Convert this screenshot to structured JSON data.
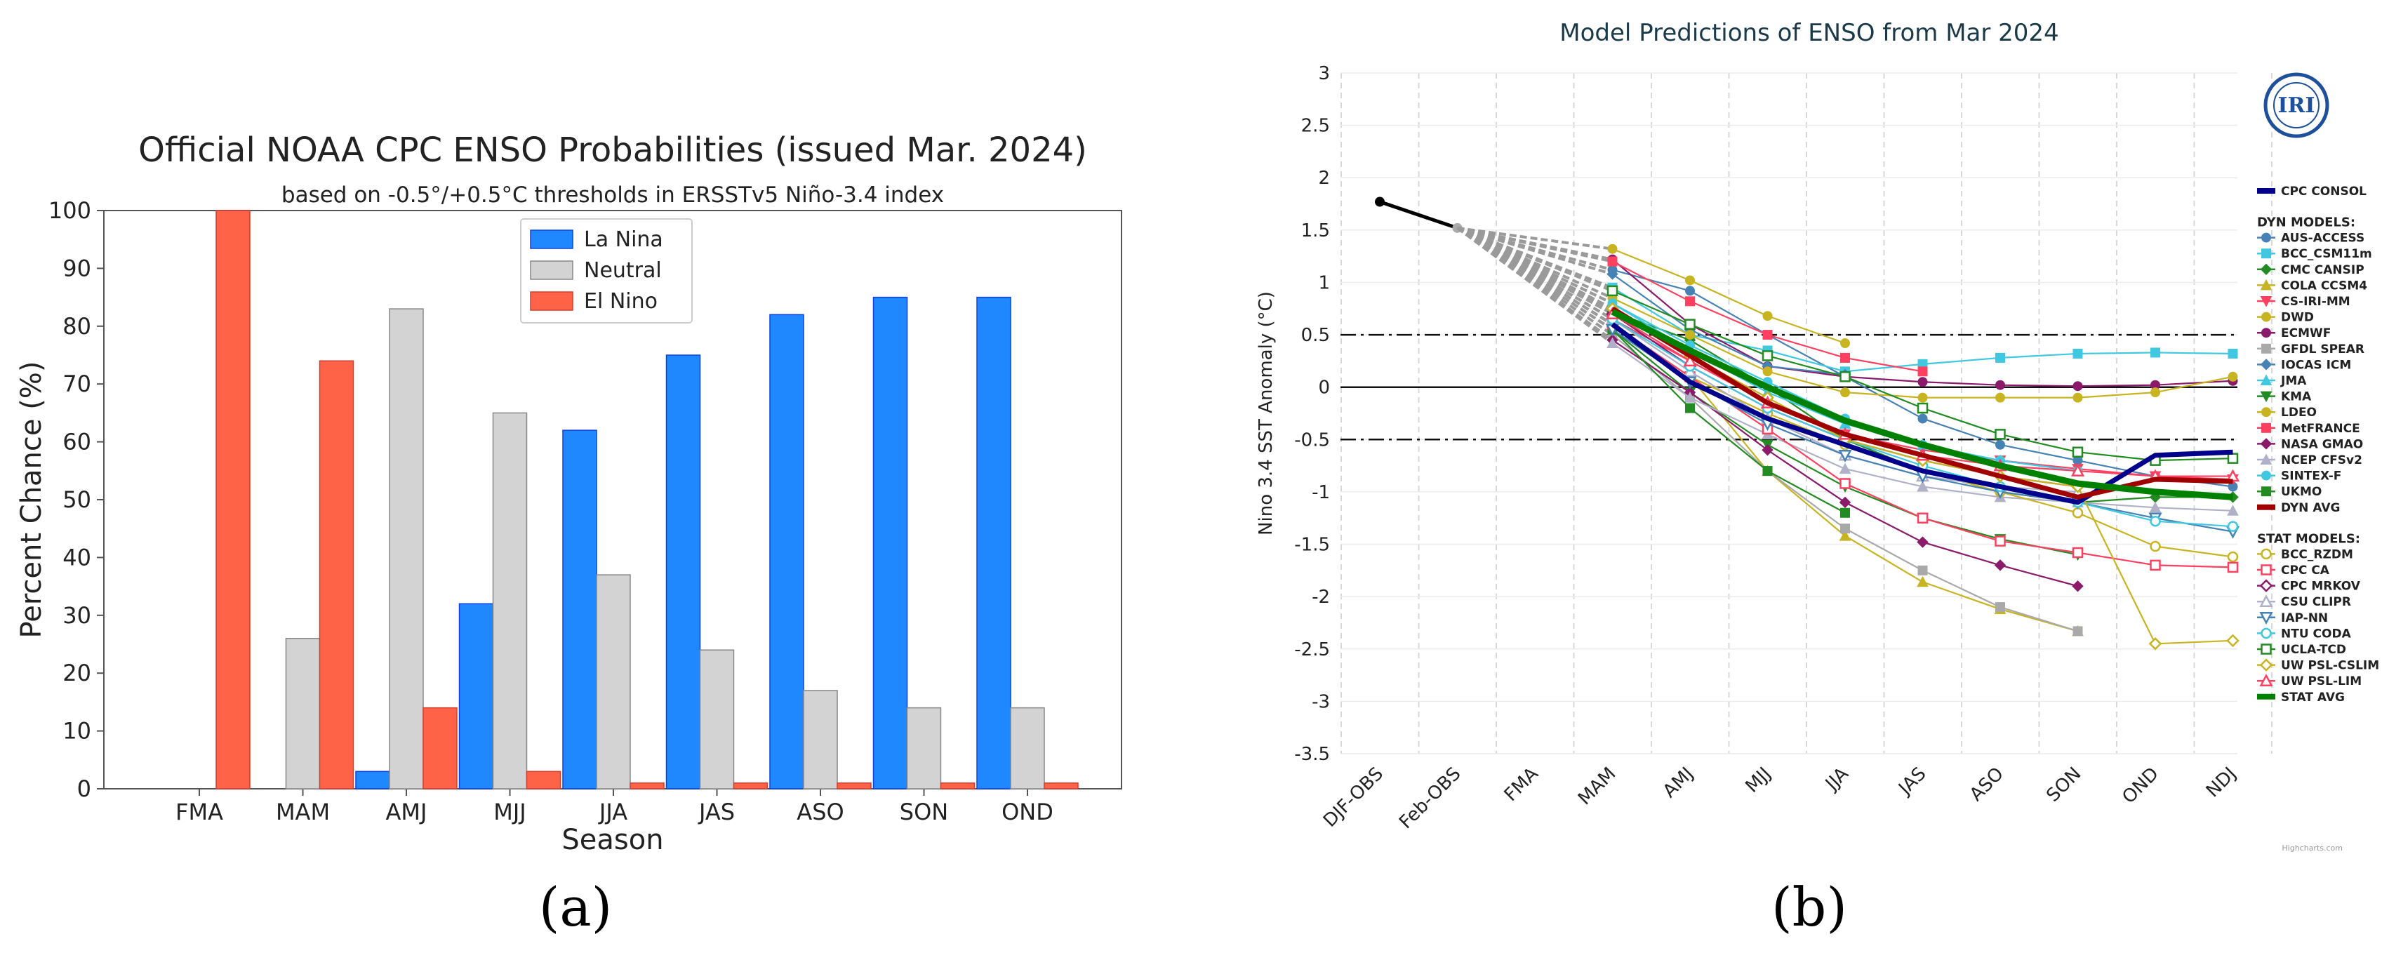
{
  "captions": {
    "a": "(a)",
    "b": "(b)"
  },
  "chart_data": [
    {
      "type": "bar",
      "title": "Official NOAA CPC ENSO Probabilities (issued Mar. 2024)",
      "subtitle": "based on -0.5°/+0.5°C thresholds in ERSSTv5 Niño-3.4 index",
      "xlabel": "Season",
      "ylabel": "Percent Chance (%)",
      "ylim": [
        0,
        100
      ],
      "yticks": [
        0,
        10,
        20,
        30,
        40,
        50,
        60,
        70,
        80,
        90,
        100
      ],
      "grid": false,
      "legend_position": "top-center",
      "categories": [
        "FMA",
        "MAM",
        "AMJ",
        "MJJ",
        "JJA",
        "JAS",
        "ASO",
        "SON",
        "OND"
      ],
      "series": [
        {
          "name": "La Nina",
          "color": "#1f88ff",
          "values": [
            0,
            0,
            3,
            32,
            62,
            75,
            82,
            85,
            85
          ]
        },
        {
          "name": "Neutral",
          "color": "#d3d3d3",
          "values": [
            0,
            26,
            83,
            65,
            37,
            24,
            17,
            14,
            14
          ]
        },
        {
          "name": "El Nino",
          "color": "#ff6347",
          "values": [
            100,
            74,
            14,
            3,
            1,
            1,
            1,
            1,
            1
          ]
        }
      ]
    },
    {
      "type": "line",
      "title": "Model Predictions of ENSO from Mar 2024",
      "ylabel": "Nino 3.4 SST Anomaly (°C)",
      "xlabel": "",
      "ylim": [
        -3.5,
        3
      ],
      "yticks": [
        "3",
        "2.5",
        "2",
        "1.5",
        "1",
        "0.5",
        "0",
        "-0.5",
        "-1",
        "-1.5",
        "-2",
        "-2.5",
        "-3",
        "-3.5"
      ],
      "categories": [
        "DJF-OBS",
        "Feb-OBS",
        "FMA",
        "MAM",
        "AMJ",
        "MJJ",
        "JJA",
        "JAS",
        "ASO",
        "SON",
        "OND",
        "NDJ"
      ],
      "reference_lines": [
        0.5,
        0,
        -0.5
      ],
      "grid": true,
      "legend_position": "right",
      "logo_text": "IRI",
      "credits": "Highcharts.com",
      "observed": {
        "x": [
          0,
          1
        ],
        "y": [
          1.77,
          1.52
        ]
      },
      "legend_groups": {
        "consol": "CPC CONSOL",
        "dyn": "DYN MODELS:",
        "stat": "STAT MODELS:"
      },
      "series": [
        {
          "name": "CPC CONSOL",
          "group": "consol",
          "color": "#00008b",
          "width": 7,
          "marker": "none",
          "y": [
            null,
            null,
            null,
            0.6,
            0.05,
            -0.3,
            -0.55,
            -0.8,
            -0.95,
            -1.1,
            -0.65,
            -0.62
          ]
        },
        {
          "name": "AUS-ACCESS",
          "group": "dyn",
          "color": "#4682b4",
          "marker": "circle",
          "y": [
            null,
            null,
            null,
            1.12,
            0.92,
            0.5,
            0.1,
            -0.3,
            -0.55,
            -0.7,
            -0.85,
            -0.95
          ]
        },
        {
          "name": "BCC_CSM11m",
          "group": "dyn",
          "color": "#40c8e0",
          "marker": "square",
          "y": [
            null,
            null,
            null,
            0.95,
            0.5,
            0.35,
            0.15,
            0.22,
            0.28,
            0.32,
            0.33,
            0.32
          ]
        },
        {
          "name": "CMC CANSIP",
          "group": "dyn",
          "color": "#228b22",
          "marker": "diamond",
          "y": [
            null,
            null,
            null,
            0.72,
            0.45,
            0.0,
            -0.5,
            -0.8,
            -1.0,
            -1.1,
            -1.05,
            -1.05
          ]
        },
        {
          "name": "COLA CCSM4",
          "group": "dyn",
          "color": "#c8b420",
          "marker": "triangle",
          "y": [
            null,
            null,
            null,
            0.6,
            0.1,
            -0.8,
            -1.42,
            -1.86,
            -2.12,
            -2.33,
            null,
            null
          ]
        },
        {
          "name": "CS-IRI-MM",
          "group": "dyn",
          "color": "#ff4060",
          "marker": "triangle-down",
          "y": [
            null,
            null,
            null,
            0.65,
            0.25,
            -0.15,
            -0.45,
            -0.6,
            -0.7,
            -0.78,
            -0.85,
            -0.88
          ]
        },
        {
          "name": "DWD",
          "group": "dyn",
          "color": "#c8b420",
          "marker": "circle",
          "y": [
            null,
            null,
            null,
            1.32,
            1.02,
            0.68,
            0.42,
            null,
            null,
            null,
            null,
            null
          ]
        },
        {
          "name": "ECMWF",
          "group": "dyn",
          "color": "#8b1a6b",
          "marker": "circle",
          "y": [
            null,
            null,
            null,
            1.22,
            0.6,
            0.2,
            0.1,
            0.05,
            0.02,
            0.01,
            0.02,
            0.06
          ]
        },
        {
          "name": "GFDL SPEAR",
          "group": "dyn",
          "color": "#a9a9a9",
          "marker": "square",
          "y": [
            null,
            null,
            null,
            0.5,
            -0.1,
            -0.8,
            -1.35,
            -1.75,
            -2.1,
            -2.33,
            null,
            null
          ]
        },
        {
          "name": "IOCAS ICM",
          "group": "dyn",
          "color": "#4682b4",
          "marker": "diamond",
          "y": [
            null,
            null,
            null,
            1.08,
            0.55,
            0.2,
            0.12,
            null,
            null,
            null,
            null,
            null
          ]
        },
        {
          "name": "JMA",
          "group": "dyn",
          "color": "#40c8e0",
          "marker": "triangle",
          "y": [
            null,
            null,
            null,
            0.8,
            0.35,
            -0.05,
            -0.35,
            -0.55,
            -0.7,
            -0.8,
            null,
            null
          ]
        },
        {
          "name": "KMA",
          "group": "dyn",
          "color": "#228b22",
          "marker": "triangle-down",
          "y": [
            null,
            null,
            null,
            0.55,
            -0.05,
            -0.55,
            -0.95,
            -1.25,
            -1.45,
            -1.6,
            null,
            null
          ]
        },
        {
          "name": "LDEO",
          "group": "dyn",
          "color": "#c8b420",
          "marker": "circle",
          "y": [
            null,
            null,
            null,
            0.85,
            0.5,
            0.15,
            -0.05,
            -0.1,
            -0.1,
            -0.1,
            -0.05,
            0.1
          ]
        },
        {
          "name": "MetFRANCE",
          "group": "dyn",
          "color": "#ff4060",
          "marker": "square",
          "y": [
            null,
            null,
            null,
            1.2,
            0.82,
            0.5,
            0.28,
            0.15,
            null,
            null,
            null,
            null
          ]
        },
        {
          "name": "NASA GMAO",
          "group": "dyn",
          "color": "#8b1a6b",
          "marker": "diamond",
          "y": [
            null,
            null,
            null,
            0.45,
            -0.05,
            -0.6,
            -1.1,
            -1.48,
            -1.7,
            -1.9,
            null,
            null
          ]
        },
        {
          "name": "NCEP CFSv2",
          "group": "dyn",
          "color": "#b0b0c8",
          "marker": "triangle",
          "y": [
            null,
            null,
            null,
            0.42,
            -0.1,
            -0.45,
            -0.78,
            -0.95,
            -1.05,
            -1.1,
            -1.15,
            -1.18
          ]
        },
        {
          "name": "SINTEX-F",
          "group": "dyn",
          "color": "#40c8e0",
          "marker": "circle",
          "y": [
            null,
            null,
            null,
            0.8,
            0.4,
            0.05,
            -0.3,
            -0.55,
            -0.7,
            -0.8,
            null,
            null
          ]
        },
        {
          "name": "UKMO",
          "group": "dyn",
          "color": "#228b22",
          "marker": "square",
          "y": [
            null,
            null,
            null,
            0.55,
            -0.2,
            -0.8,
            -1.2,
            null,
            null,
            null,
            null,
            null
          ]
        },
        {
          "name": "DYN AVG",
          "group": "dyn",
          "color": "#a00000",
          "width": 7,
          "marker": "none",
          "y": [
            null,
            null,
            null,
            0.75,
            0.3,
            -0.15,
            -0.45,
            -0.65,
            -0.85,
            -1.05,
            -0.88,
            -0.9
          ]
        },
        {
          "name": "BCC_RZDM",
          "group": "stat",
          "color": "#c8b420",
          "marker": "open-circle",
          "y": [
            null,
            null,
            null,
            0.6,
            0.1,
            -0.25,
            -0.55,
            -0.8,
            -1.0,
            -1.2,
            -1.52,
            -1.62
          ]
        },
        {
          "name": "CPC CA",
          "group": "stat",
          "color": "#ff4060",
          "marker": "open-square",
          "y": [
            null,
            null,
            null,
            0.6,
            0.1,
            -0.4,
            -0.92,
            -1.25,
            -1.47,
            -1.58,
            -1.7,
            -1.72
          ]
        },
        {
          "name": "CPC MRKOV",
          "group": "stat",
          "color": "#8b1a6b",
          "marker": "open-diamond",
          "y": [
            null,
            null,
            null,
            0.7,
            0.2,
            -0.2,
            -0.5,
            -0.7,
            -0.85,
            -0.95,
            null,
            null
          ]
        },
        {
          "name": "CSU CLIPR",
          "group": "stat",
          "color": "#b0b0c8",
          "marker": "open-triangle",
          "y": [
            null,
            null,
            null,
            0.65,
            0.15,
            -0.3,
            -0.65,
            -0.85,
            -0.95,
            -1.0,
            null,
            null
          ]
        },
        {
          "name": "IAP-NN",
          "group": "stat",
          "color": "#4682b4",
          "marker": "open-triangle-down",
          "y": [
            null,
            null,
            null,
            0.55,
            0.05,
            -0.35,
            -0.65,
            -0.85,
            -1.0,
            -1.1,
            -1.25,
            -1.38
          ]
        },
        {
          "name": "NTU CODA",
          "group": "stat",
          "color": "#40c8e0",
          "marker": "open-circle",
          "y": [
            null,
            null,
            null,
            0.65,
            0.2,
            -0.2,
            -0.5,
            -0.75,
            -0.95,
            -1.1,
            -1.28,
            -1.33
          ]
        },
        {
          "name": "UCLA-TCD",
          "group": "stat",
          "color": "#228b22",
          "marker": "open-square",
          "y": [
            null,
            null,
            null,
            0.92,
            0.6,
            0.3,
            0.1,
            -0.2,
            -0.45,
            -0.62,
            -0.7,
            -0.68
          ]
        },
        {
          "name": "UW PSL-CSLIM",
          "group": "stat",
          "color": "#c8b420",
          "marker": "open-diamond",
          "y": [
            null,
            null,
            null,
            0.75,
            0.3,
            -0.1,
            -0.5,
            -0.7,
            -0.85,
            -0.95,
            -2.45,
            -2.42
          ]
        },
        {
          "name": "UW PSL-LIM",
          "group": "stat",
          "color": "#ff4060",
          "marker": "open-triangle",
          "y": [
            null,
            null,
            null,
            0.7,
            0.25,
            -0.15,
            -0.45,
            -0.65,
            -0.75,
            -0.8,
            -0.85,
            -0.85
          ]
        },
        {
          "name": "STAT AVG",
          "group": "stat",
          "color": "#008000",
          "width": 9,
          "marker": "none",
          "y": [
            null,
            null,
            null,
            0.72,
            0.35,
            0.0,
            -0.32,
            -0.55,
            -0.75,
            -0.92,
            -1.0,
            -1.05
          ]
        }
      ]
    }
  ]
}
